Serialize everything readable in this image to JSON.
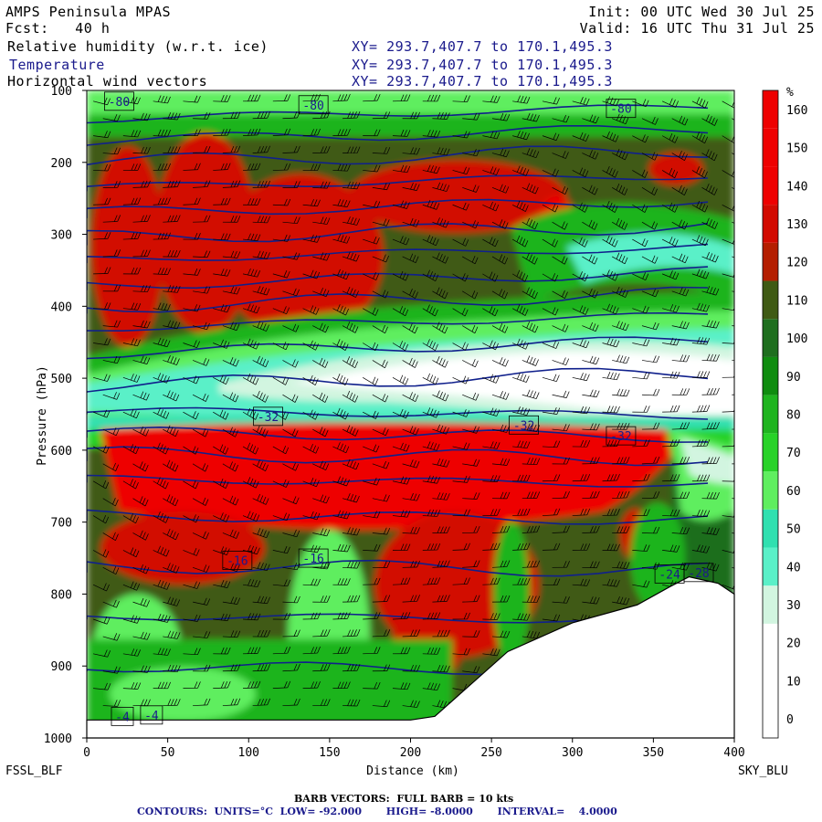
{
  "header": {
    "title": "AMPS Peninsula MPAS",
    "fcst": "Fcst:   40 h",
    "init": "Init: 00 UTC Wed 30 Jul 25",
    "valid": "Valid: 16 UTC Thu 31 Jul 25",
    "fields": [
      {
        "label": "Relative humidity (w.r.t. ice)",
        "coords": "XY= 293.7,407.7 to 170.1,495.3"
      },
      {
        "label": "Temperature",
        "coords": "XY= 293.7,407.7 to 170.1,495.3"
      },
      {
        "label": "Horizontal wind vectors",
        "coords": "XY= 293.7,407.7 to 170.1,495.3"
      }
    ]
  },
  "left_station": "FSSL_BLF",
  "right_station": "SKY_BLU",
  "footer": {
    "barb": "BARB VECTORS:  FULL BARB = 10 kts",
    "contours": "CONTOURS:  UNITS=°C  LOW= -92.000       HIGH= -8.0000       INTERVAL=    4.0000"
  },
  "colors": {
    "white": "#ffffff",
    "rh_30": "#d2f5e0",
    "rh_40": "#5af0c8",
    "rh_50": "#30e0b0",
    "rh_60": "#5fee5f",
    "rh_70": "#28d228",
    "rh_80": "#1fb41f",
    "rh_90": "#0f8c0f",
    "rh_100": "#1e6e1e",
    "rh_110": "#3f5a14",
    "rh_120": "#b41e00",
    "rh_130": "#d20a00",
    "rh_140": "#ee0000",
    "contour": "#10208c"
  },
  "chart_data": {
    "type": "cross-section",
    "xlabel": "Distance (km)",
    "ylabel": "Pressure (hPa)",
    "x_ticks": [
      0,
      50,
      100,
      150,
      200,
      250,
      300,
      350,
      400
    ],
    "y_ticks": [
      100,
      200,
      300,
      400,
      500,
      600,
      700,
      800,
      900,
      1000
    ],
    "xlim": [
      0,
      400
    ],
    "ylim": [
      1000,
      100
    ],
    "colorbar": {
      "unit": "%",
      "levels": [
        0,
        10,
        20,
        30,
        40,
        50,
        60,
        70,
        80,
        90,
        100,
        110,
        120,
        130,
        140,
        150,
        160
      ],
      "colors": [
        "#ffffff",
        "#ffffff",
        "#ffffff",
        "#d2f5e0",
        "#5af0c8",
        "#30e0b0",
        "#5fee5f",
        "#28d228",
        "#1fb41f",
        "#0f8c0f",
        "#1e6e1e",
        "#3f5a14",
        "#b41e00",
        "#d20a00",
        "#ee0000",
        "#ee0000",
        "#ee0000"
      ]
    },
    "contour_labels": [
      {
        "text": "-80",
        "x": 20,
        "p": 115
      },
      {
        "text": "-80",
        "x": 140,
        "p": 120
      },
      {
        "text": "-80",
        "x": 330,
        "p": 125
      },
      {
        "text": "-32",
        "x": 112,
        "p": 553
      },
      {
        "text": "-32",
        "x": 270,
        "p": 565
      },
      {
        "text": "-32",
        "x": 330,
        "p": 580
      },
      {
        "text": "-16",
        "x": 93,
        "p": 753
      },
      {
        "text": "-16",
        "x": 140,
        "p": 750
      },
      {
        "text": "-24",
        "x": 360,
        "p": 772
      },
      {
        "text": "-28",
        "x": 378,
        "p": 770
      },
      {
        "text": "-4",
        "x": 22,
        "p": 970
      },
      {
        "text": "-4",
        "x": 40,
        "p": 968
      }
    ],
    "terrain": {
      "x": [
        0,
        10,
        50,
        100,
        150,
        200,
        215,
        230,
        260,
        300,
        340,
        360,
        372,
        390,
        400
      ],
      "p": [
        975,
        975,
        975,
        975,
        975,
        975,
        970,
        940,
        880,
        840,
        815,
        790,
        776,
        785,
        800
      ]
    },
    "isotherms_p": [
      140,
      170,
      200,
      235,
      270,
      305,
      335,
      370,
      400,
      430,
      465,
      510,
      545,
      575,
      605,
      640,
      690,
      760,
      830,
      900
    ]
  }
}
